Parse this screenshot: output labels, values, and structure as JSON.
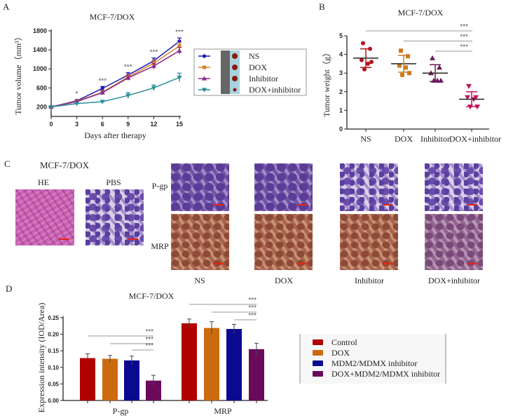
{
  "panel_labels": {
    "a": "A",
    "b": "B",
    "c": "C",
    "d": "D"
  },
  "chart_data": [
    {
      "type": "line",
      "panel": "A",
      "title": "MCF-7/DOX",
      "xlabel": "Days after therapy",
      "ylabel": "Tumor volume（mm³）",
      "x": [
        0,
        3,
        6,
        9,
        12,
        15
      ],
      "xticks": [
        "0",
        "3",
        "6",
        "9",
        "12",
        "15"
      ],
      "yticks": [
        "200",
        "600",
        "1000",
        "1400",
        "1800"
      ],
      "ylim": [
        0,
        1800
      ],
      "xlim": [
        0,
        15
      ],
      "series": [
        {
          "name": "NS",
          "color": "#1a1ab8",
          "marker": "circle",
          "values": [
            200,
            330,
            590,
            870,
            1170,
            1580
          ],
          "err": [
            20,
            25,
            40,
            50,
            60,
            70
          ]
        },
        {
          "name": "DOX",
          "color": "#d9822b",
          "marker": "square",
          "values": [
            200,
            320,
            510,
            830,
            1120,
            1480
          ],
          "err": [
            20,
            25,
            40,
            50,
            60,
            70
          ]
        },
        {
          "name": "Inhibitor",
          "color": "#8b2a8b",
          "marker": "triangle-up",
          "values": [
            200,
            310,
            500,
            810,
            1060,
            1380
          ],
          "err": [
            20,
            25,
            40,
            50,
            60,
            70
          ]
        },
        {
          "name": "DOX+inhibitor",
          "color": "#2a8f9a",
          "marker": "triangle-down",
          "values": [
            200,
            270,
            310,
            440,
            600,
            820
          ],
          "err": [
            15,
            20,
            20,
            60,
            60,
            90
          ]
        }
      ],
      "significance": [
        "",
        "*",
        "***",
        "***",
        "***",
        "***"
      ],
      "legend_placement": "right"
    },
    {
      "type": "scatter",
      "panel": "B",
      "title": "MCF-7/DOX",
      "ylabel": "Tumor weight（g）",
      "categories": [
        "NS",
        "DOX",
        "Inhibitor",
        "DOX+inhibitor"
      ],
      "yticks": [
        "0",
        "1",
        "2",
        "3",
        "4",
        "5"
      ],
      "ylim": [
        0,
        5
      ],
      "groups": [
        {
          "color": "#b5121b",
          "marker": "circle",
          "points": [
            4.6,
            4.3,
            3.7,
            3.5,
            3.6,
            3.2
          ],
          "mean": 3.8,
          "sd": 0.5
        },
        {
          "color": "#cc7a1c",
          "marker": "square",
          "points": [
            4.2,
            3.9,
            3.4,
            3.3,
            3.0,
            2.9
          ],
          "mean": 3.5,
          "sd": 0.45
        },
        {
          "color": "#6a1a5a",
          "marker": "triangle-up",
          "points": [
            3.8,
            3.3,
            3.0,
            2.6,
            2.6,
            2.6
          ],
          "mean": 3.0,
          "sd": 0.45
        },
        {
          "color": "#c0145a",
          "marker": "triangle-down",
          "points": [
            2.3,
            1.7,
            1.7,
            1.6,
            1.2,
            1.2
          ],
          "mean": 1.6,
          "sd": 0.4
        }
      ],
      "significance": [
        {
          "from": "NS",
          "to": "DOX+inhibitor",
          "label": "***"
        },
        {
          "from": "DOX",
          "to": "DOX+inhibitor",
          "label": "***"
        },
        {
          "from": "Inhibitor",
          "to": "DOX+inhibitor",
          "label": "***"
        }
      ]
    },
    {
      "type": "bar",
      "panel": "D",
      "title": "MCF-7/DOX",
      "ylabel": "Expression intensity (IOD/Area)",
      "categories": [
        "P-gp",
        "MRP"
      ],
      "yticks": [
        "0.00",
        "0.05",
        "0.10",
        "0.15",
        "0.20",
        "0.25"
      ],
      "ylim": [
        0,
        0.25
      ],
      "series": [
        {
          "name": "Control",
          "color": "#b00000",
          "values": [
            0.128,
            0.233
          ],
          "err": [
            0.013,
            0.013
          ]
        },
        {
          "name": "DOX",
          "color": "#cc6a10",
          "values": [
            0.126,
            0.219
          ],
          "err": [
            0.01,
            0.019
          ]
        },
        {
          "name": "MDM2/MDMX inhibitor",
          "color": "#0a0a90",
          "values": [
            0.121,
            0.216
          ],
          "err": [
            0.013,
            0.014
          ]
        },
        {
          "name": "DOX+MDM2/MDMX inhibitor",
          "color": "#6a0a5a",
          "values": [
            0.06,
            0.155
          ],
          "err": [
            0.016,
            0.018
          ]
        }
      ],
      "significance": [
        "***",
        "***",
        "***"
      ],
      "legend_placement": "right"
    }
  ],
  "panel_c": {
    "title": "MCF-7/DOX",
    "left_labels": [
      "HE",
      "PBS"
    ],
    "row_labels": [
      "P-gp",
      "MRP"
    ],
    "column_labels": [
      "NS",
      "DOX",
      "Inhibitor",
      "DOX+inhibitor"
    ]
  }
}
